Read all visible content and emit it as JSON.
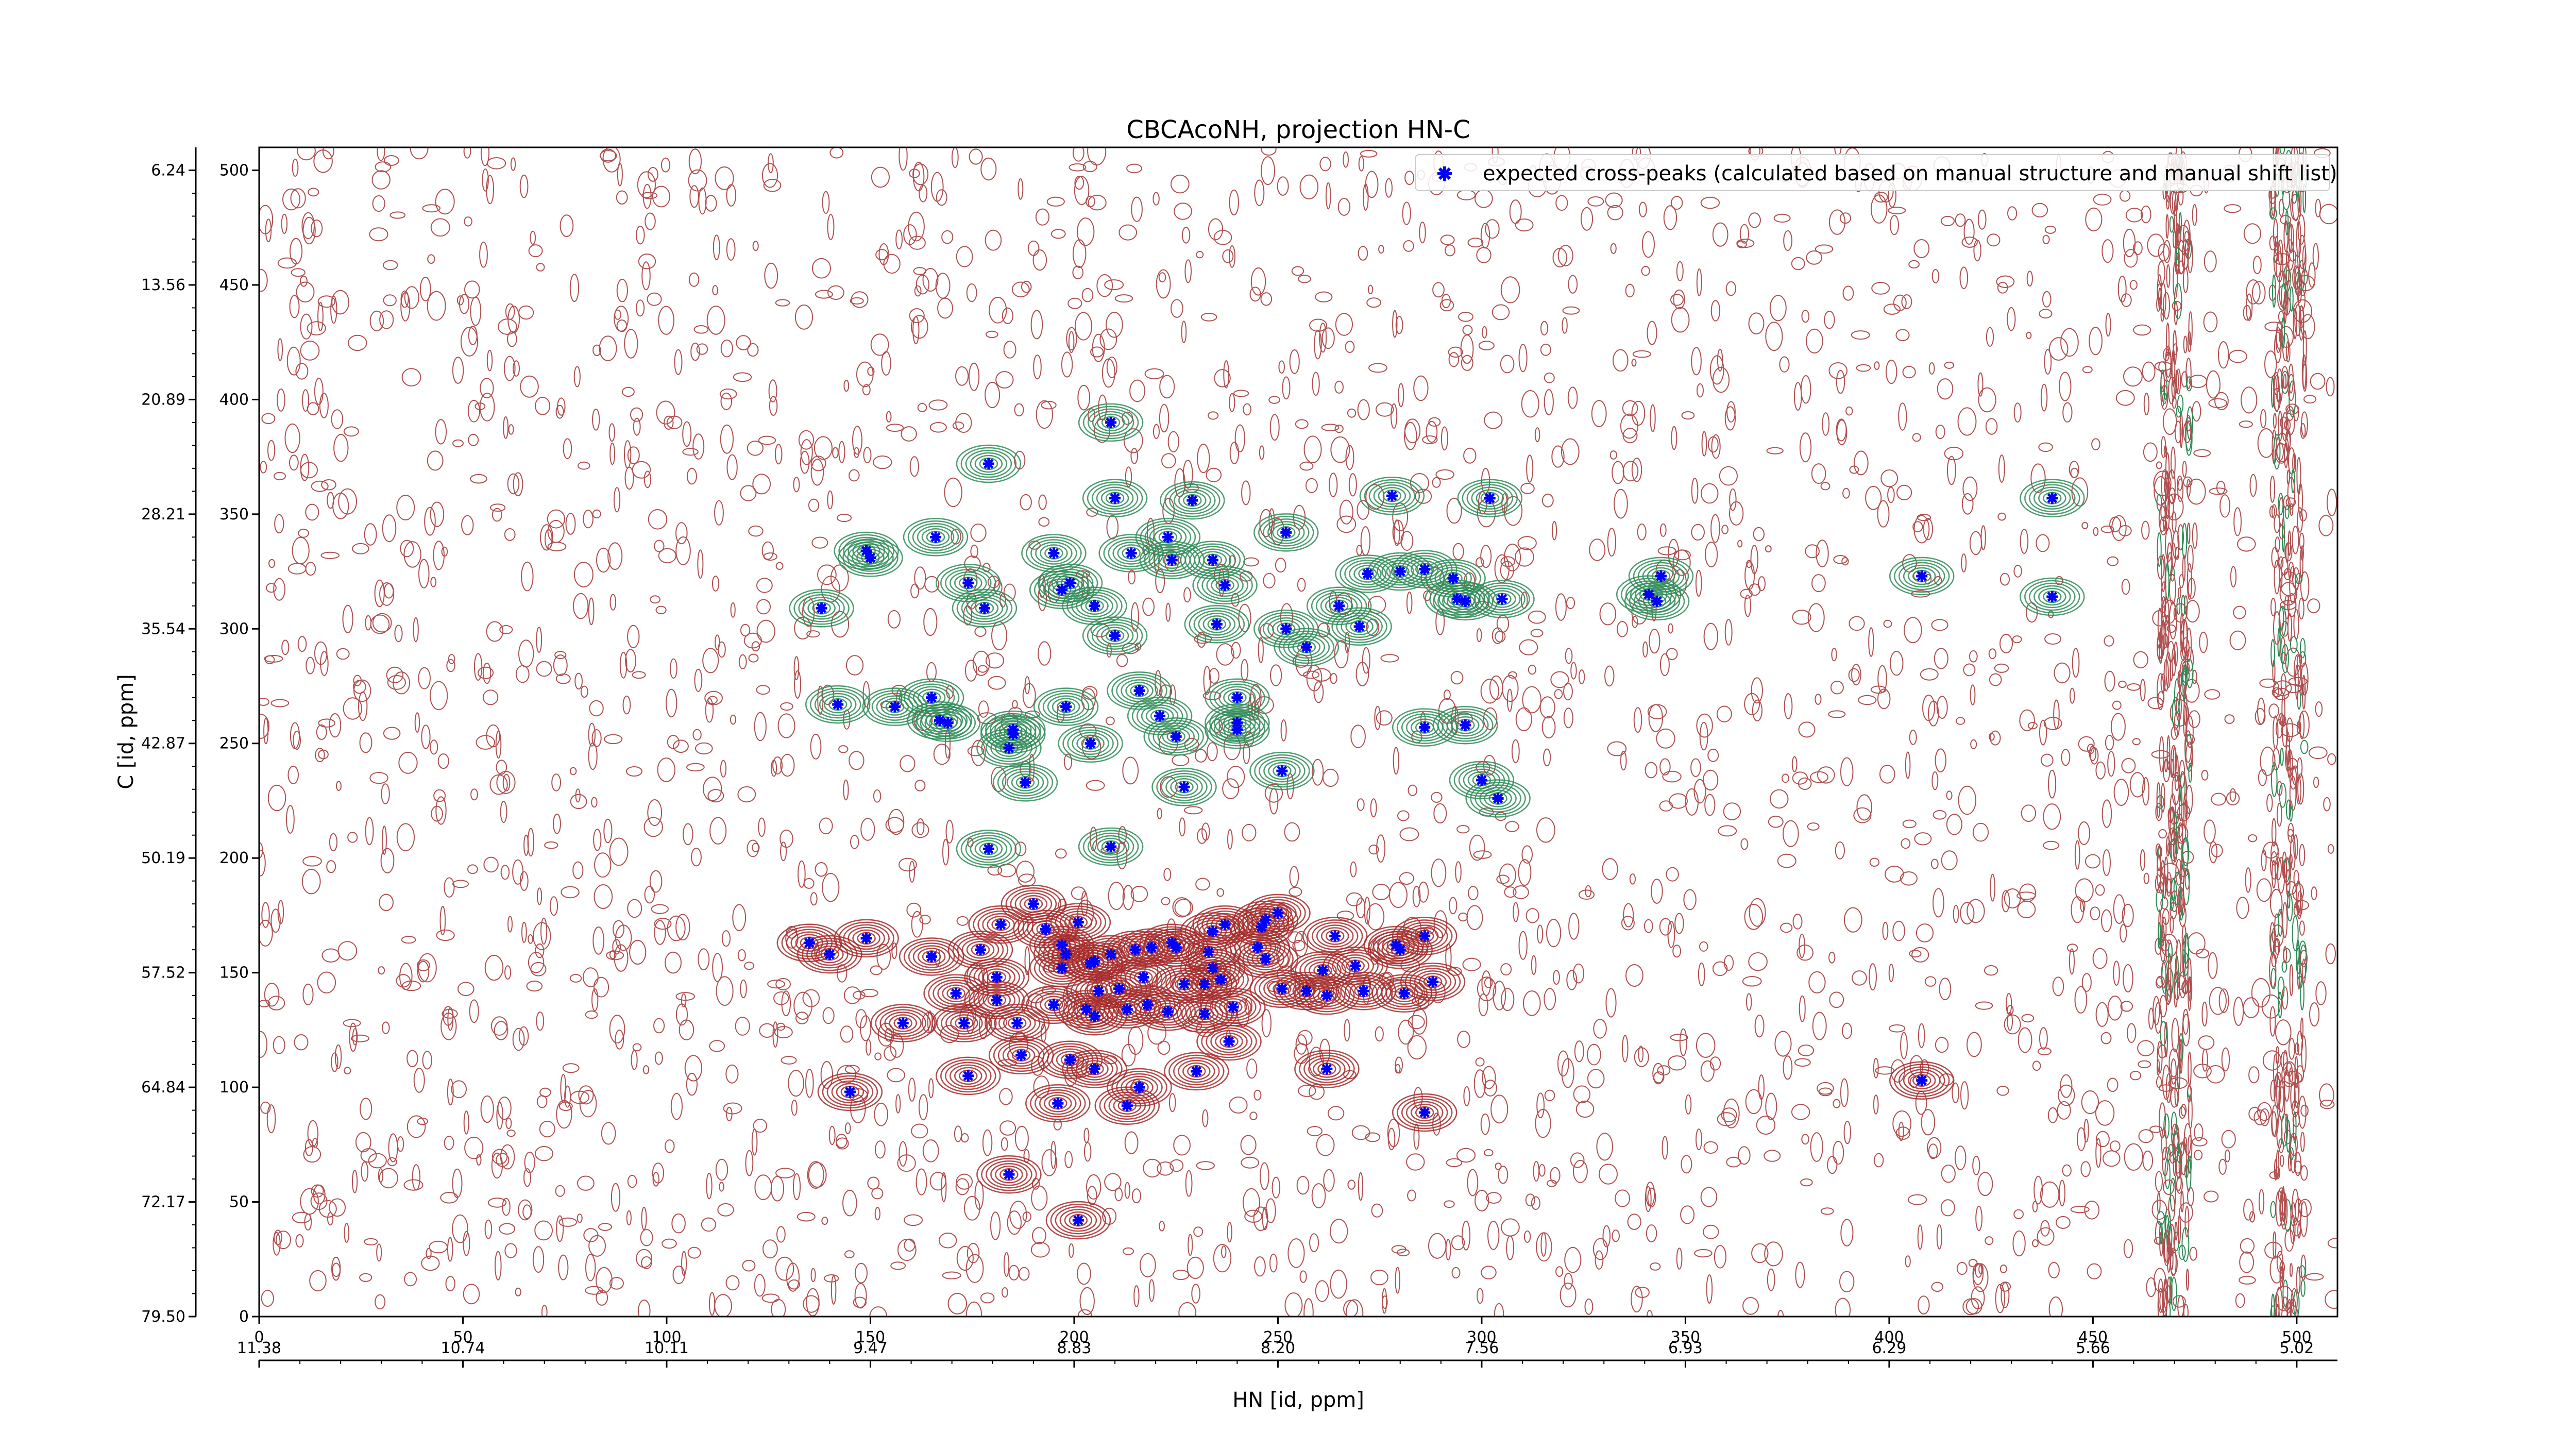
{
  "chart_data": {
    "type": "scatter",
    "title": "CBCAcoNH, projection HN-C",
    "xlabel": "HN [id, ppm]",
    "ylabel": "C [id, ppm]",
    "xlim": [
      0,
      510
    ],
    "ylim": [
      0,
      510
    ],
    "bottom_axis": {
      "ticks": [
        0,
        50,
        100,
        150,
        200,
        250,
        300,
        350,
        400,
        450,
        500
      ],
      "tick_labels": [
        "0",
        "50",
        "100",
        "150",
        "200",
        "250",
        "300",
        "350",
        "400",
        "450",
        "500"
      ]
    },
    "bottom_secondary_axis": {
      "ticks": [
        0,
        50,
        100,
        150,
        200,
        250,
        300,
        350,
        400,
        450,
        500
      ],
      "tick_labels": [
        "11.38",
        "10.74",
        "10.11",
        "9.47",
        "8.83",
        "8.20",
        "7.56",
        "6.93",
        "6.29",
        "5.66",
        "5.02"
      ]
    },
    "left_axis": {
      "ticks": [
        0,
        50,
        100,
        150,
        200,
        250,
        300,
        350,
        400,
        450,
        500
      ],
      "tick_labels": [
        "0",
        "50",
        "100",
        "150",
        "200",
        "250",
        "300",
        "350",
        "400",
        "450",
        "500"
      ]
    },
    "left_secondary_axis": {
      "ticks": [
        0,
        50,
        100,
        150,
        200,
        250,
        300,
        350,
        400,
        450,
        500
      ],
      "tick_labels": [
        "79.50",
        "72.17",
        "64.84",
        "57.52",
        "50.19",
        "42.87",
        "35.54",
        "28.21",
        "20.89",
        "13.56",
        "6.24"
      ]
    },
    "legend": {
      "position": "top-right",
      "entries": [
        "expected cross-peaks (calculated based on manual structure and manual shift list)"
      ]
    },
    "colors": {
      "marker": "#0000ff",
      "positive_contour": "#2e8b57",
      "negative_contour": "#a52a2a",
      "noise_contour": "#b05050",
      "axes": "#000000"
    },
    "grid": false,
    "series": [
      {
        "name": "expected cross-peaks (calculated based on manual structure and manual shift list)",
        "points": [
          [
            209,
            390
          ],
          [
            179,
            372
          ],
          [
            210,
            357
          ],
          [
            229,
            356
          ],
          [
            278,
            358
          ],
          [
            302,
            357
          ],
          [
            440,
            357
          ],
          [
            166,
            340
          ],
          [
            149,
            334
          ],
          [
            150,
            331
          ],
          [
            195,
            333
          ],
          [
            214,
            333
          ],
          [
            223,
            340
          ],
          [
            224,
            330
          ],
          [
            234,
            330
          ],
          [
            252,
            342
          ],
          [
            272,
            324
          ],
          [
            280,
            325
          ],
          [
            286,
            326
          ],
          [
            293,
            322
          ],
          [
            305,
            313
          ],
          [
            341,
            315
          ],
          [
            343,
            312
          ],
          [
            344,
            323
          ],
          [
            408,
            323
          ],
          [
            440,
            314
          ],
          [
            138,
            309
          ],
          [
            174,
            320
          ],
          [
            178,
            309
          ],
          [
            197,
            317
          ],
          [
            199,
            320
          ],
          [
            205,
            310
          ],
          [
            237,
            319
          ],
          [
            265,
            310
          ],
          [
            252,
            300
          ],
          [
            294,
            313
          ],
          [
            210,
            297
          ],
          [
            257,
            292
          ],
          [
            270,
            301
          ],
          [
            296,
            312
          ],
          [
            235,
            302
          ],
          [
            142,
            267
          ],
          [
            156,
            266
          ],
          [
            165,
            270
          ],
          [
            167,
            260
          ],
          [
            169,
            259
          ],
          [
            184,
            248
          ],
          [
            185,
            256
          ],
          [
            185,
            254
          ],
          [
            198,
            266
          ],
          [
            204,
            250
          ],
          [
            216,
            273
          ],
          [
            221,
            262
          ],
          [
            225,
            253
          ],
          [
            240,
            270
          ],
          [
            240,
            256
          ],
          [
            240,
            259
          ],
          [
            286,
            257
          ],
          [
            296,
            258
          ],
          [
            300,
            234
          ],
          [
            304,
            226
          ],
          [
            188,
            233
          ],
          [
            227,
            231
          ],
          [
            251,
            238
          ],
          [
            179,
            204
          ],
          [
            209,
            205
          ],
          [
            190,
            180
          ],
          [
            182,
            171
          ],
          [
            193,
            169
          ],
          [
            201,
            172
          ],
          [
            234,
            168
          ],
          [
            247,
            173
          ],
          [
            250,
            176
          ],
          [
            237,
            171
          ],
          [
            135,
            163
          ],
          [
            140,
            158
          ],
          [
            149,
            165
          ],
          [
            197,
            162
          ],
          [
            209,
            158
          ],
          [
            215,
            160
          ],
          [
            219,
            161
          ],
          [
            224,
            163
          ],
          [
            225,
            161
          ],
          [
            233,
            159
          ],
          [
            245,
            161
          ],
          [
            246,
            170
          ],
          [
            264,
            166
          ],
          [
            280,
            160
          ],
          [
            279,
            162
          ],
          [
            286,
            166
          ],
          [
            165,
            157
          ],
          [
            177,
            160
          ],
          [
            198,
            158
          ],
          [
            204,
            154
          ],
          [
            205,
            155
          ],
          [
            234,
            152
          ],
          [
            247,
            156
          ],
          [
            261,
            151
          ],
          [
            269,
            153
          ],
          [
            288,
            146
          ],
          [
            171,
            141
          ],
          [
            181,
            148
          ],
          [
            197,
            152
          ],
          [
            206,
            142
          ],
          [
            211,
            143
          ],
          [
            217,
            148
          ],
          [
            227,
            145
          ],
          [
            232,
            145
          ],
          [
            236,
            147
          ],
          [
            239,
            135
          ],
          [
            251,
            143
          ],
          [
            257,
            142
          ],
          [
            262,
            140
          ],
          [
            271,
            142
          ],
          [
            281,
            141
          ],
          [
            158,
            128
          ],
          [
            173,
            128
          ],
          [
            181,
            138
          ],
          [
            186,
            128
          ],
          [
            195,
            136
          ],
          [
            203,
            134
          ],
          [
            205,
            131
          ],
          [
            213,
            134
          ],
          [
            218,
            136
          ],
          [
            223,
            133
          ],
          [
            232,
            132
          ],
          [
            238,
            120
          ],
          [
            187,
            114
          ],
          [
            199,
            112
          ],
          [
            205,
            108
          ],
          [
            216,
            100
          ],
          [
            230,
            107
          ],
          [
            262,
            108
          ],
          [
            145,
            98
          ],
          [
            174,
            105
          ],
          [
            196,
            93
          ],
          [
            213,
            92
          ],
          [
            286,
            89
          ],
          [
            408,
            103
          ],
          [
            184,
            62
          ],
          [
            201,
            42
          ]
        ]
      }
    ]
  }
}
